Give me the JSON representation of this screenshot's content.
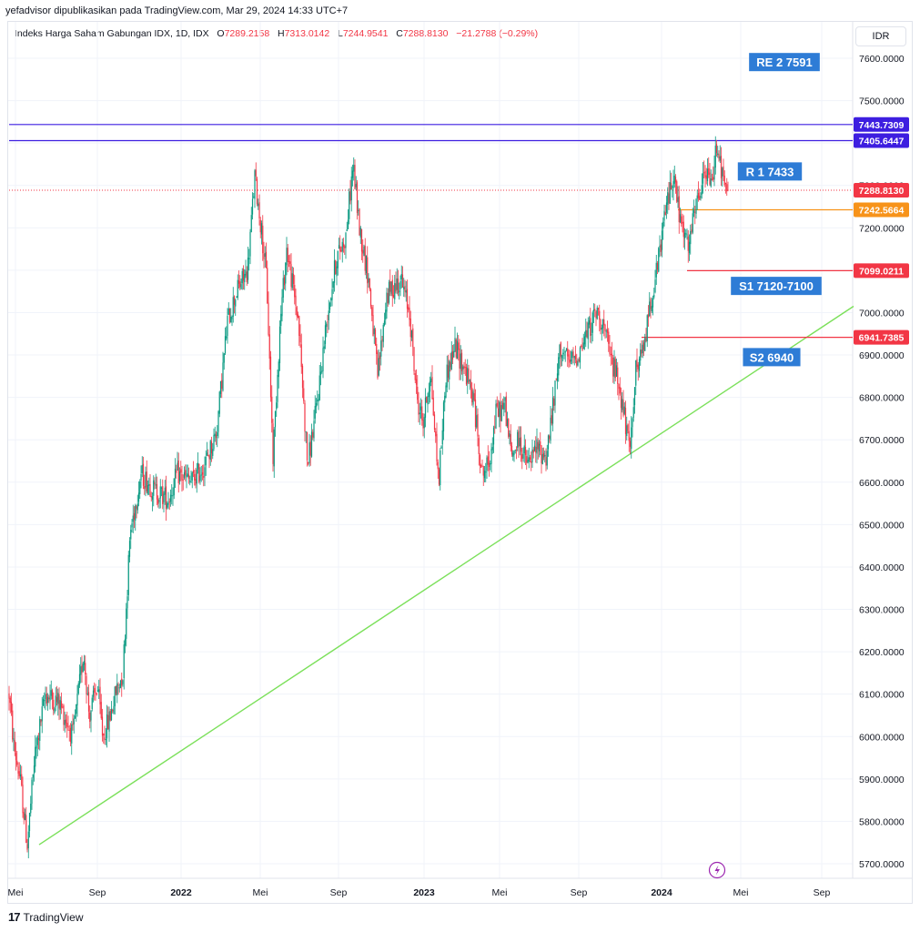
{
  "publish_line": "yefadvisor dipublikasikan pada TradingView.com, Mar 29, 2024 14:33 UTC+7",
  "legend": {
    "symbol": "Indeks Harga Saham Gabungan IDX, 1D, IDX",
    "open_label": "O",
    "open": "7289.2158",
    "high_label": "H",
    "high": "7313.0142",
    "low_label": "L",
    "low": "7244.9541",
    "close_label": "C",
    "close": "7288.8130",
    "change": "−21.2788 (−0.29%)"
  },
  "currency": "IDR",
  "footer": {
    "logo_mark": "17",
    "brand": "TradingView"
  },
  "icons": {
    "flash": "lightning-icon",
    "logo": "tradingview-logo-icon"
  },
  "colors": {
    "up": "#089981",
    "down": "#f23645",
    "resistance": "#3d1ee0",
    "support": "#f23645",
    "current": "#f23645",
    "recent": "#f7931a",
    "trendline": "#7be05a",
    "annotation": "#2e7cd6",
    "grid": "#f0f3fa"
  },
  "chart_data": {
    "type": "candlestick",
    "instrument": "Indeks Harga Saham Gabungan IDX",
    "interval": "1D",
    "currency": "IDR",
    "ylim": [
      5680,
      7680
    ],
    "y_ticks": [
      5700,
      5800,
      5900,
      6000,
      6100,
      6200,
      6300,
      6400,
      6500,
      6600,
      6700,
      6800,
      6900,
      7000,
      7100,
      7200,
      7300,
      7400,
      7500,
      7600
    ],
    "x_ticks": [
      "Mei",
      "Sep",
      "2022",
      "Mei",
      "Sep",
      "2023",
      "Mei",
      "Sep",
      "2024",
      "Mei",
      "Sep"
    ],
    "path": [
      [
        0,
        6100
      ],
      [
        5,
        5980
      ],
      [
        12,
        5900
      ],
      [
        20,
        5745
      ],
      [
        28,
        5950
      ],
      [
        40,
        6100
      ],
      [
        55,
        6080
      ],
      [
        70,
        6000
      ],
      [
        82,
        6200
      ],
      [
        88,
        6050
      ],
      [
        97,
        6120
      ],
      [
        103,
        6000
      ],
      [
        110,
        6040
      ],
      [
        118,
        6110
      ],
      [
        125,
        6150
      ],
      [
        133,
        6480
      ],
      [
        145,
        6620
      ],
      [
        160,
        6580
      ],
      [
        175,
        6560
      ],
      [
        185,
        6620
      ],
      [
        200,
        6600
      ],
      [
        215,
        6640
      ],
      [
        228,
        6720
      ],
      [
        240,
        6980
      ],
      [
        250,
        7050
      ],
      [
        262,
        7100
      ],
      [
        270,
        7320
      ],
      [
        277,
        7200
      ],
      [
        283,
        7080
      ],
      [
        290,
        6660
      ],
      [
        298,
        6980
      ],
      [
        305,
        7150
      ],
      [
        318,
        6980
      ],
      [
        328,
        6640
      ],
      [
        338,
        6780
      ],
      [
        350,
        7000
      ],
      [
        360,
        7130
      ],
      [
        370,
        7180
      ],
      [
        378,
        7350
      ],
      [
        385,
        7200
      ],
      [
        395,
        7080
      ],
      [
        405,
        6850
      ],
      [
        415,
        7040
      ],
      [
        430,
        7080
      ],
      [
        440,
        7000
      ],
      [
        448,
        6800
      ],
      [
        455,
        6740
      ],
      [
        463,
        6860
      ],
      [
        472,
        6600
      ],
      [
        480,
        6850
      ],
      [
        490,
        6920
      ],
      [
        500,
        6870
      ],
      [
        510,
        6800
      ],
      [
        520,
        6620
      ],
      [
        527,
        6640
      ],
      [
        535,
        6760
      ],
      [
        545,
        6780
      ],
      [
        552,
        6660
      ],
      [
        560,
        6700
      ],
      [
        570,
        6640
      ],
      [
        580,
        6680
      ],
      [
        590,
        6660
      ],
      [
        598,
        6780
      ],
      [
        606,
        6920
      ],
      [
        615,
        6880
      ],
      [
        625,
        6900
      ],
      [
        637,
        6960
      ],
      [
        645,
        7000
      ],
      [
        652,
        6980
      ],
      [
        660,
        6900
      ],
      [
        668,
        6850
      ],
      [
        676,
        6760
      ],
      [
        682,
        6660
      ],
      [
        688,
        6860
      ],
      [
        696,
        6900
      ],
      [
        705,
        7030
      ],
      [
        712,
        7100
      ],
      [
        722,
        7250
      ],
      [
        730,
        7330
      ],
      [
        737,
        7220
      ],
      [
        746,
        7150
      ],
      [
        755,
        7250
      ],
      [
        765,
        7330
      ],
      [
        772,
        7300
      ],
      [
        778,
        7410
      ],
      [
        785,
        7300
      ],
      [
        791,
        7289
      ]
    ],
    "horizontal_lines": [
      {
        "price": 7443.7309,
        "label": "7443.7309",
        "color": "#3d1ee0",
        "x_from": 0,
        "kind": "resistance"
      },
      {
        "price": 7405.6447,
        "label": "7405.6447",
        "color": "#3d1ee0",
        "x_from": 0,
        "kind": "resistance"
      },
      {
        "price": 7288.813,
        "label": "7288.8130",
        "color": "#f23645",
        "x_from": 0,
        "kind": "last-price",
        "dotted": true
      },
      {
        "price": 7242.5664,
        "label": "7242.5664",
        "color": "#f7931a",
        "x_from": 735,
        "kind": "support"
      },
      {
        "price": 7099.0211,
        "label": "7099.0211",
        "color": "#f23645",
        "x_from": 745,
        "kind": "support"
      },
      {
        "price": 6941.7385,
        "label": "6941.7385",
        "color": "#f23645",
        "x_from": 695,
        "kind": "support"
      }
    ],
    "trendline": {
      "from": [
        33,
        5745
      ],
      "to": [
        928,
        7015
      ],
      "color": "#7be05a"
    },
    "annotations": [
      {
        "text": "RE 2 7591",
        "price": 7591,
        "x": 862
      },
      {
        "text": "R 1 7433",
        "price": 7333,
        "x": 846
      },
      {
        "text": "S1 7120-7100",
        "price": 7063,
        "x": 853
      },
      {
        "text": "S2 6940",
        "price": 6895,
        "x": 848
      }
    ]
  }
}
